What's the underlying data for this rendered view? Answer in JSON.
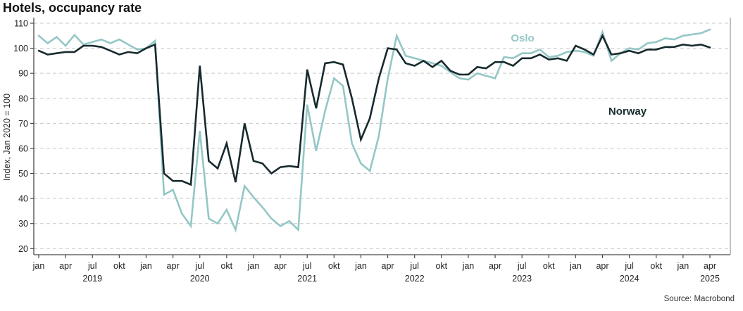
{
  "header": {
    "title": "Hotels, occupancy rate"
  },
  "source": "Source: Macrobond",
  "chart_data": {
    "type": "line",
    "title": "Hotels, occupancy rate",
    "ylabel": "Index, Jan 2020 = 100",
    "ylim": [
      20,
      110
    ],
    "yticks": [
      20,
      30,
      40,
      50,
      60,
      70,
      80,
      90,
      100,
      110
    ],
    "grid": "horizontal-dashed",
    "x_start": "jan 2019",
    "x_end": "apr 2025",
    "x_axis": {
      "month_labels": [
        "jan",
        "apr",
        "jul",
        "okt"
      ],
      "year_labels": [
        "2019",
        "2020",
        "2021",
        "2022",
        "2023",
        "2024",
        "2025"
      ]
    },
    "legend_position": "inline-labels",
    "legend": [
      {
        "label": "Oslo",
        "color": "#94c7c5"
      },
      {
        "label": "Norway",
        "color": "#172a2e"
      }
    ],
    "series": [
      {
        "name": "Oslo",
        "color": "#94c7c5",
        "values": [
          105,
          102,
          104.5,
          101,
          105.3,
          101.5,
          102.5,
          103.5,
          102,
          103.5,
          101.5,
          99.5,
          100,
          103,
          41.5,
          43.5,
          34,
          29,
          67,
          32,
          30,
          35.5,
          27.5,
          45,
          40.5,
          36.5,
          32,
          29,
          31,
          27.5,
          77.5,
          59,
          75,
          88,
          85,
          62,
          54,
          51,
          65,
          88,
          105,
          97,
          96,
          95,
          94,
          93,
          90.5,
          88,
          87.5,
          90,
          89,
          88,
          96.5,
          96,
          98,
          98,
          99.5,
          96.5,
          97,
          98.5,
          99,
          98.5,
          97,
          106.5,
          95,
          98,
          100,
          99.5,
          102,
          102.5,
          104,
          103.5,
          105,
          105.5,
          106,
          107.5
        ]
      },
      {
        "name": "Norway",
        "color": "#172a2e",
        "values": [
          99,
          97.5,
          98,
          98.5,
          98.5,
          101,
          101,
          100.5,
          99,
          97.5,
          98.5,
          98,
          100,
          101.5,
          50,
          47,
          47,
          45.5,
          93,
          55,
          52,
          62,
          46.5,
          70,
          55,
          54,
          50,
          52.5,
          53,
          52.5,
          91.5,
          76,
          94,
          94.5,
          93.5,
          80,
          63.5,
          72,
          88,
          100,
          99.5,
          94,
          93,
          95,
          92.5,
          95,
          91,
          89.5,
          89.5,
          92.5,
          92,
          94.5,
          94.5,
          93,
          96,
          96,
          97.5,
          95.5,
          96,
          95,
          101,
          99.5,
          97.5,
          105,
          97.5,
          98,
          99,
          98,
          99.5,
          99.5,
          100.5,
          100.5,
          101.5,
          101,
          101.5,
          100.3
        ]
      }
    ]
  }
}
